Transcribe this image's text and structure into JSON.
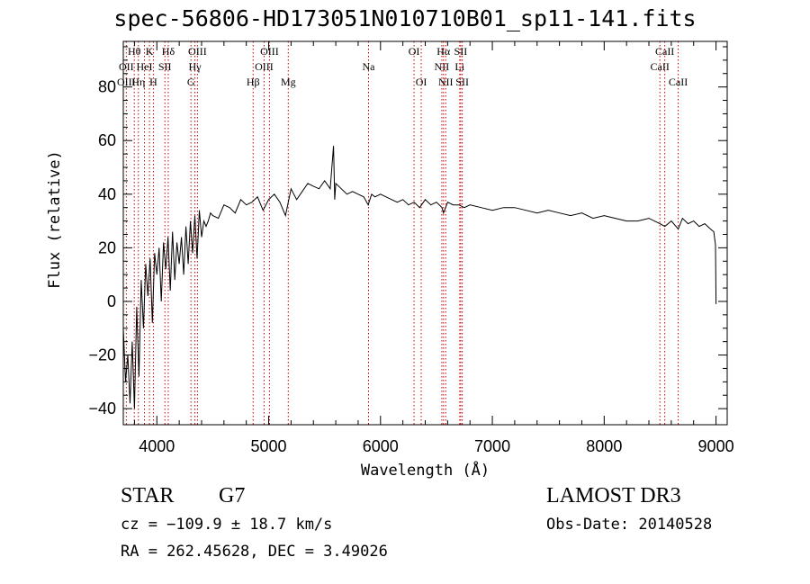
{
  "chart_data": {
    "type": "line",
    "title": "spec-56806-HD173051N010710B01_sp11-141.fits",
    "xlabel": "Wavelength (Å)",
    "ylabel": "Flux (relative)",
    "xlim": [
      3700,
      9100
    ],
    "ylim": [
      -46,
      97
    ],
    "xticks": [
      4000,
      5000,
      6000,
      7000,
      8000,
      9000
    ],
    "yticks": [
      -40,
      -20,
      0,
      20,
      40,
      60,
      80
    ],
    "grid": false,
    "series": [
      {
        "name": "flux",
        "x": [
          3700,
          3720,
          3740,
          3760,
          3780,
          3800,
          3820,
          3840,
          3860,
          3880,
          3900,
          3920,
          3940,
          3960,
          3980,
          4000,
          4020,
          4040,
          4060,
          4080,
          4100,
          4120,
          4140,
          4160,
          4180,
          4200,
          4220,
          4240,
          4260,
          4280,
          4300,
          4320,
          4340,
          4360,
          4380,
          4400,
          4420,
          4440,
          4460,
          4480,
          4500,
          4550,
          4600,
          4650,
          4700,
          4750,
          4800,
          4850,
          4900,
          4950,
          5000,
          5050,
          5100,
          5150,
          5200,
          5250,
          5300,
          5350,
          5400,
          5450,
          5500,
          5550,
          5580,
          5590,
          5600,
          5650,
          5700,
          5750,
          5800,
          5850,
          5890,
          5920,
          5950,
          6000,
          6050,
          6100,
          6150,
          6200,
          6250,
          6300,
          6350,
          6400,
          6450,
          6500,
          6550,
          6563,
          6600,
          6650,
          6700,
          6750,
          6800,
          6900,
          7000,
          7100,
          7200,
          7300,
          7400,
          7500,
          7600,
          7700,
          7800,
          7900,
          8000,
          8100,
          8200,
          8300,
          8400,
          8498,
          8542,
          8600,
          8662,
          8700,
          8750,
          8800,
          8850,
          8900,
          8950,
          8980,
          8995,
          9000
        ],
        "y": [
          -10,
          -30,
          -20,
          -38,
          -15,
          -40,
          -2,
          -28,
          8,
          -10,
          14,
          2,
          16,
          -8,
          18,
          10,
          20,
          0,
          22,
          12,
          24,
          4,
          26,
          8,
          22,
          14,
          24,
          10,
          28,
          14,
          30,
          18,
          32,
          16,
          34,
          24,
          30,
          28,
          30,
          33,
          32,
          31,
          36,
          35,
          33,
          38,
          36,
          37,
          39,
          34,
          38,
          40,
          37,
          32,
          42,
          38,
          41,
          44,
          43,
          42,
          45,
          42,
          58,
          38,
          44,
          42,
          40,
          41,
          40,
          39,
          36,
          40,
          39,
          40,
          39,
          38,
          37,
          38,
          36,
          37,
          35,
          38,
          36,
          37,
          35,
          33,
          37,
          36,
          36,
          35,
          36,
          35,
          34,
          35,
          35,
          34,
          33,
          34,
          33,
          32,
          33,
          31,
          32,
          31,
          30,
          30,
          31,
          29,
          28,
          30,
          27,
          31,
          29,
          30,
          28,
          29,
          27,
          26,
          21,
          -1
        ]
      }
    ],
    "lines": [
      {
        "name": "Hθ",
        "wave": 3798,
        "row": 1
      },
      {
        "name": "OII",
        "wave": 3727,
        "row": 2
      },
      {
        "name": "OIII",
        "wave": 3727,
        "row": 3
      },
      {
        "name": "K",
        "wave": 3934,
        "row": 1
      },
      {
        "name": "HeI",
        "wave": 3889,
        "row": 2
      },
      {
        "name": "Hη",
        "wave": 3835,
        "row": 3
      },
      {
        "name": "H",
        "wave": 3969,
        "row": 3
      },
      {
        "name": "SII",
        "wave": 4072,
        "row": 2
      },
      {
        "name": "Hδ",
        "wave": 4102,
        "row": 1
      },
      {
        "name": "OIII",
        "wave": 4363,
        "row": 1
      },
      {
        "name": "Hγ",
        "wave": 4340,
        "row": 2
      },
      {
        "name": "G",
        "wave": 4305,
        "row": 3
      },
      {
        "name": "OIII",
        "wave": 5007,
        "row": 1
      },
      {
        "name": "OIII",
        "wave": 4959,
        "row": 2
      },
      {
        "name": "Hβ",
        "wave": 4861,
        "row": 3
      },
      {
        "name": "Mg",
        "wave": 5175,
        "row": 3
      },
      {
        "name": "Na",
        "wave": 5893,
        "row": 2
      },
      {
        "name": "OI",
        "wave": 6300,
        "row": 1
      },
      {
        "name": "OI",
        "wave": 6364,
        "row": 3
      },
      {
        "name": "Hα",
        "wave": 6563,
        "row": 1
      },
      {
        "name": "NII",
        "wave": 6548,
        "row": 2
      },
      {
        "name": "NII",
        "wave": 6583,
        "row": 3
      },
      {
        "name": "SII",
        "wave": 6717,
        "row": 1
      },
      {
        "name": "Li",
        "wave": 6708,
        "row": 2
      },
      {
        "name": "SII",
        "wave": 6731,
        "row": 3
      },
      {
        "name": "CaII",
        "wave": 8542,
        "row": 1
      },
      {
        "name": "CaII",
        "wave": 8498,
        "row": 2
      },
      {
        "name": "CaII",
        "wave": 8662,
        "row": 3
      }
    ]
  },
  "info": {
    "object_class": "STAR",
    "subclass": "G7",
    "survey": "LAMOST DR3",
    "cz": "cz = −109.9 ± 18.7 km/s",
    "obs_date": "Obs-Date: 20140528",
    "radec": "RA = 262.45628, DEC =   3.49026"
  },
  "colors": {
    "spectrum": "#000000",
    "line_markers": "#cc0000",
    "axes": "#000000"
  }
}
